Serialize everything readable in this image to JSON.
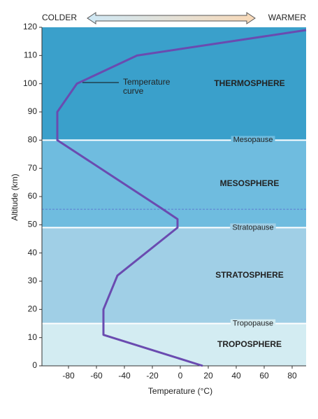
{
  "chart_data": {
    "type": "line",
    "cold_label": "COLDER",
    "warm_label": "WARMER",
    "x_label": "Temperature (°C)",
    "y_label": "Altitude (km)",
    "xlim": [
      -99,
      90
    ],
    "ylim": [
      0,
      120
    ],
    "xticks": [
      -80,
      -60,
      -40,
      -20,
      0,
      20,
      40,
      60,
      80
    ],
    "yticks": [
      0,
      10,
      20,
      30,
      40,
      50,
      60,
      70,
      80,
      90,
      100,
      110,
      120
    ],
    "layers": [
      {
        "name": "TROPOSPHERE",
        "bottom": 0,
        "top": 15,
        "color": "#d3ecf2"
      },
      {
        "name": "STRATOSPHERE",
        "bottom": 15,
        "top": 49,
        "color": "#a0cfe6"
      },
      {
        "name": "MESOSPHERE",
        "bottom": 49,
        "top": 80,
        "color": "#6fbcdf"
      },
      {
        "name": "THERMOSPHERE",
        "bottom": 80,
        "top": 120,
        "color": "#3aa0cb"
      }
    ],
    "boundaries": [
      {
        "label": "Tropopause",
        "value": 15
      },
      {
        "label": "Stratopause",
        "value": 49
      },
      {
        "label": "Mesopause",
        "value": 80
      }
    ],
    "dashed_line": 55.5,
    "annotation": [
      "Temperature",
      "curve"
    ],
    "line_color": "#6a4bb0",
    "x": [
      16,
      -55,
      -55,
      -45,
      -2,
      -2,
      -14,
      -88,
      -88,
      -74,
      -31,
      90
    ],
    "values": [
      0,
      11,
      20,
      32,
      49,
      52,
      56,
      80,
      90,
      100,
      110,
      119
    ]
  }
}
